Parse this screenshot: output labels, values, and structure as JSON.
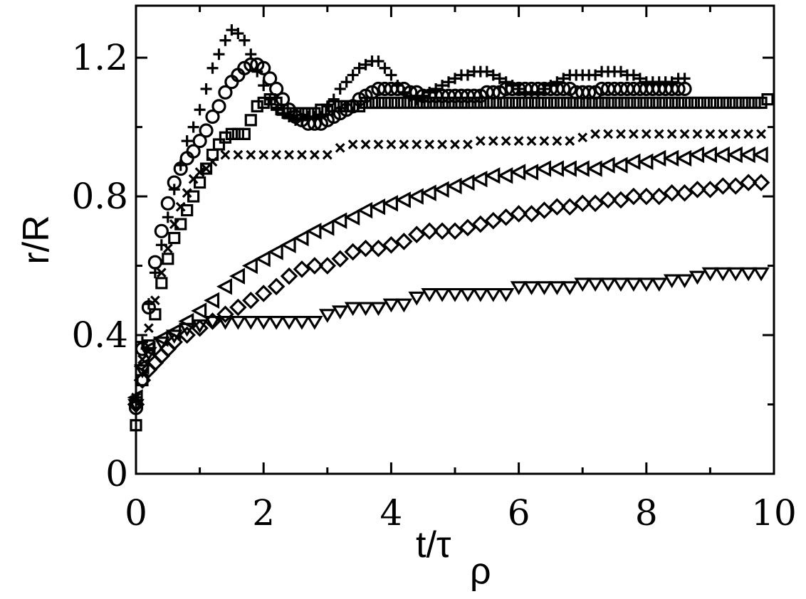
{
  "chart_data": {
    "type": "scatter",
    "xlabel_main": "t/τ",
    "xlabel_sub": "ρ",
    "ylabel": "r/R",
    "xlim": [
      0,
      10
    ],
    "ylim": [
      0,
      1.35
    ],
    "x_ticks": [
      "0",
      "2",
      "4",
      "6",
      "8",
      "10"
    ],
    "x_tick_values": [
      0,
      2,
      4,
      6,
      8,
      10
    ],
    "y_ticks": [
      "0",
      "0.4",
      "0.8",
      "1.2"
    ],
    "y_tick_values": [
      0,
      0.4,
      0.8,
      1.2
    ],
    "grid": false,
    "legend": "none",
    "marker_color": "#000000",
    "series": [
      {
        "marker": "plus",
        "x": [
          0.0,
          0.1,
          0.2,
          0.3,
          0.4,
          0.5,
          0.6,
          0.7,
          0.8,
          0.9,
          1.0,
          1.1,
          1.2,
          1.3,
          1.4,
          1.5,
          1.6,
          1.7,
          1.8,
          1.9,
          2.0,
          2.1,
          2.2,
          2.3,
          2.4,
          2.5,
          2.6,
          2.7,
          2.8,
          2.9,
          3.0,
          3.1,
          3.2,
          3.3,
          3.4,
          3.5,
          3.6,
          3.7,
          3.8,
          3.9,
          4.0,
          4.1,
          4.2,
          4.3,
          4.4,
          4.5,
          4.6,
          4.7,
          4.8,
          4.9,
          5.0,
          5.1,
          5.2,
          5.3,
          5.4,
          5.5,
          5.6,
          5.7,
          5.8,
          5.9,
          6.0,
          6.1,
          6.2,
          6.3,
          6.4,
          6.5,
          6.6,
          6.7,
          6.8,
          6.9,
          7.0,
          7.1,
          7.2,
          7.3,
          7.4,
          7.5,
          7.6,
          7.7,
          7.8,
          7.9,
          8.0,
          8.1,
          8.2,
          8.3,
          8.4,
          8.5,
          8.6
        ],
        "y": [
          0.22,
          0.38,
          0.49,
          0.58,
          0.66,
          0.74,
          0.82,
          0.89,
          0.96,
          1.0,
          1.05,
          1.11,
          1.17,
          1.21,
          1.25,
          1.28,
          1.27,
          1.25,
          1.21,
          1.16,
          1.12,
          1.08,
          1.05,
          1.04,
          1.03,
          1.02,
          1.02,
          1.03,
          1.03,
          1.03,
          1.06,
          1.08,
          1.11,
          1.13,
          1.15,
          1.17,
          1.18,
          1.19,
          1.19,
          1.17,
          1.15,
          1.12,
          1.1,
          1.09,
          1.08,
          1.09,
          1.1,
          1.11,
          1.12,
          1.13,
          1.14,
          1.15,
          1.15,
          1.16,
          1.16,
          1.16,
          1.15,
          1.14,
          1.13,
          1.12,
          1.11,
          1.1,
          1.1,
          1.1,
          1.11,
          1.12,
          1.13,
          1.14,
          1.15,
          1.15,
          1.15,
          1.15,
          1.15,
          1.16,
          1.16,
          1.16,
          1.16,
          1.15,
          1.15,
          1.14,
          1.13,
          1.13,
          1.13,
          1.13,
          1.13,
          1.14,
          1.14
        ]
      },
      {
        "marker": "circle",
        "x": [
          0.0,
          0.1,
          0.2,
          0.3,
          0.4,
          0.5,
          0.6,
          0.7,
          0.8,
          0.9,
          1.0,
          1.1,
          1.2,
          1.3,
          1.4,
          1.5,
          1.6,
          1.7,
          1.8,
          1.9,
          2.0,
          2.1,
          2.2,
          2.3,
          2.4,
          2.5,
          2.6,
          2.7,
          2.8,
          2.9,
          3.0,
          3.1,
          3.2,
          3.3,
          3.4,
          3.5,
          3.6,
          3.7,
          3.8,
          3.9,
          4.0,
          4.1,
          4.2,
          4.3,
          4.4,
          4.5,
          4.6,
          4.7,
          4.8,
          4.9,
          5.0,
          5.1,
          5.2,
          5.3,
          5.4,
          5.5,
          5.6,
          5.7,
          5.8,
          5.9,
          6.0,
          6.1,
          6.2,
          6.3,
          6.4,
          6.5,
          6.6,
          6.7,
          6.8,
          6.9,
          7.0,
          7.1,
          7.2,
          7.3,
          7.4,
          7.5,
          7.6,
          7.7,
          7.8,
          7.9,
          8.0,
          8.1,
          8.2,
          8.3,
          8.4,
          8.5,
          8.6
        ],
        "y": [
          0.19,
          0.36,
          0.48,
          0.61,
          0.7,
          0.78,
          0.84,
          0.88,
          0.91,
          0.93,
          0.96,
          0.99,
          1.03,
          1.06,
          1.1,
          1.13,
          1.15,
          1.17,
          1.18,
          1.18,
          1.17,
          1.14,
          1.11,
          1.08,
          1.05,
          1.03,
          1.02,
          1.01,
          1.01,
          1.01,
          1.02,
          1.03,
          1.04,
          1.05,
          1.06,
          1.08,
          1.09,
          1.1,
          1.11,
          1.11,
          1.11,
          1.11,
          1.11,
          1.1,
          1.1,
          1.09,
          1.09,
          1.09,
          1.09,
          1.09,
          1.09,
          1.09,
          1.09,
          1.09,
          1.09,
          1.1,
          1.1,
          1.1,
          1.11,
          1.11,
          1.11,
          1.11,
          1.11,
          1.11,
          1.11,
          1.11,
          1.11,
          1.11,
          1.11,
          1.1,
          1.1,
          1.1,
          1.1,
          1.11,
          1.11,
          1.11,
          1.11,
          1.11,
          1.11,
          1.11,
          1.11,
          1.11,
          1.11,
          1.11,
          1.11,
          1.11,
          1.11
        ]
      },
      {
        "marker": "square",
        "x": [
          0.0,
          0.1,
          0.2,
          0.3,
          0.4,
          0.5,
          0.6,
          0.7,
          0.8,
          0.9,
          1.0,
          1.1,
          1.2,
          1.3,
          1.4,
          1.5,
          1.6,
          1.7,
          1.8,
          1.9,
          2.0,
          2.1,
          2.2,
          2.3,
          2.4,
          2.5,
          2.6,
          2.7,
          2.8,
          2.9,
          3.0,
          3.1,
          3.2,
          3.3,
          3.4,
          3.5,
          3.6,
          3.7,
          3.8,
          3.9,
          4.0,
          4.1,
          4.2,
          4.3,
          4.4,
          4.5,
          4.6,
          4.7,
          4.8,
          4.9,
          5.0,
          5.1,
          5.2,
          5.3,
          5.4,
          5.5,
          5.6,
          5.7,
          5.8,
          5.9,
          6.0,
          6.1,
          6.2,
          6.3,
          6.4,
          6.5,
          6.6,
          6.7,
          6.8,
          6.9,
          7.0,
          7.1,
          7.2,
          7.3,
          7.4,
          7.5,
          7.6,
          7.7,
          7.8,
          7.9,
          8.0,
          8.1,
          8.2,
          8.3,
          8.4,
          8.5,
          8.6,
          8.7,
          8.8,
          8.9,
          9.0,
          9.1,
          9.2,
          9.3,
          9.4,
          9.5,
          9.6,
          9.7,
          9.8,
          9.9
        ],
        "y": [
          0.14,
          0.27,
          0.37,
          0.46,
          0.55,
          0.62,
          0.68,
          0.72,
          0.76,
          0.8,
          0.84,
          0.88,
          0.92,
          0.95,
          0.97,
          0.98,
          0.98,
          0.98,
          1.02,
          1.06,
          1.07,
          1.08,
          1.07,
          1.05,
          1.04,
          1.04,
          1.04,
          1.04,
          1.04,
          1.05,
          1.05,
          1.06,
          1.06,
          1.06,
          1.06,
          1.06,
          1.07,
          1.07,
          1.07,
          1.07,
          1.07,
          1.07,
          1.07,
          1.07,
          1.07,
          1.07,
          1.07,
          1.07,
          1.07,
          1.07,
          1.07,
          1.07,
          1.07,
          1.07,
          1.07,
          1.07,
          1.07,
          1.07,
          1.07,
          1.07,
          1.07,
          1.07,
          1.07,
          1.07,
          1.07,
          1.07,
          1.07,
          1.07,
          1.07,
          1.07,
          1.07,
          1.07,
          1.07,
          1.07,
          1.07,
          1.07,
          1.07,
          1.07,
          1.07,
          1.07,
          1.07,
          1.07,
          1.07,
          1.07,
          1.07,
          1.07,
          1.07,
          1.07,
          1.07,
          1.07,
          1.07,
          1.07,
          1.07,
          1.07,
          1.07,
          1.07,
          1.07,
          1.07,
          1.07,
          1.08
        ]
      },
      {
        "marker": "cross",
        "x": [
          0.0,
          0.1,
          0.2,
          0.3,
          0.4,
          0.5,
          0.6,
          0.7,
          0.8,
          0.9,
          1.0,
          1.1,
          1.2,
          1.4,
          1.6,
          1.8,
          2.0,
          2.2,
          2.4,
          2.6,
          2.8,
          3.0,
          3.2,
          3.4,
          3.6,
          3.8,
          4.0,
          4.2,
          4.4,
          4.6,
          4.8,
          5.0,
          5.2,
          5.4,
          5.6,
          5.8,
          6.0,
          6.2,
          6.4,
          6.6,
          6.8,
          7.0,
          7.2,
          7.4,
          7.6,
          7.8,
          8.0,
          8.2,
          8.4,
          8.6,
          8.8,
          9.0,
          9.2,
          9.4,
          9.6,
          9.8
        ],
        "y": [
          0.22,
          0.33,
          0.42,
          0.5,
          0.58,
          0.65,
          0.72,
          0.77,
          0.81,
          0.85,
          0.87,
          0.88,
          0.9,
          0.92,
          0.92,
          0.92,
          0.92,
          0.92,
          0.92,
          0.92,
          0.92,
          0.92,
          0.94,
          0.95,
          0.95,
          0.95,
          0.95,
          0.95,
          0.95,
          0.95,
          0.95,
          0.95,
          0.95,
          0.96,
          0.96,
          0.96,
          0.96,
          0.96,
          0.96,
          0.96,
          0.96,
          0.97,
          0.98,
          0.98,
          0.98,
          0.98,
          0.98,
          0.98,
          0.98,
          0.98,
          0.98,
          0.98,
          0.98,
          0.98,
          0.98,
          0.98
        ]
      },
      {
        "marker": "triangle-left",
        "x": [
          0.0,
          0.1,
          0.2,
          0.4,
          0.6,
          0.8,
          1.0,
          1.2,
          1.4,
          1.6,
          1.8,
          2.0,
          2.2,
          2.4,
          2.6,
          2.8,
          3.0,
          3.2,
          3.4,
          3.6,
          3.8,
          4.0,
          4.2,
          4.4,
          4.6,
          4.8,
          5.0,
          5.2,
          5.4,
          5.6,
          5.8,
          6.0,
          6.2,
          6.4,
          6.6,
          6.8,
          7.0,
          7.2,
          7.4,
          7.6,
          7.8,
          8.0,
          8.2,
          8.4,
          8.6,
          8.8,
          9.0,
          9.2,
          9.4,
          9.6,
          9.8
        ],
        "y": [
          0.22,
          0.31,
          0.36,
          0.39,
          0.41,
          0.44,
          0.47,
          0.5,
          0.54,
          0.57,
          0.6,
          0.62,
          0.64,
          0.66,
          0.68,
          0.7,
          0.71,
          0.73,
          0.74,
          0.76,
          0.77,
          0.78,
          0.79,
          0.8,
          0.81,
          0.82,
          0.83,
          0.84,
          0.85,
          0.86,
          0.86,
          0.87,
          0.87,
          0.88,
          0.88,
          0.88,
          0.88,
          0.88,
          0.89,
          0.89,
          0.9,
          0.9,
          0.91,
          0.91,
          0.91,
          0.92,
          0.92,
          0.92,
          0.92,
          0.92,
          0.92
        ]
      },
      {
        "marker": "diamond",
        "x": [
          0.0,
          0.1,
          0.2,
          0.3,
          0.4,
          0.5,
          0.6,
          0.8,
          1.0,
          1.2,
          1.4,
          1.6,
          1.8,
          2.0,
          2.2,
          2.4,
          2.6,
          2.8,
          3.0,
          3.2,
          3.4,
          3.6,
          3.8,
          4.0,
          4.2,
          4.4,
          4.6,
          4.8,
          5.0,
          5.2,
          5.4,
          5.6,
          5.8,
          6.0,
          6.2,
          6.4,
          6.6,
          6.8,
          7.0,
          7.2,
          7.4,
          7.6,
          7.8,
          8.0,
          8.2,
          8.4,
          8.6,
          8.8,
          9.0,
          9.2,
          9.4,
          9.6,
          9.8
        ],
        "y": [
          0.2,
          0.27,
          0.3,
          0.32,
          0.34,
          0.36,
          0.38,
          0.4,
          0.42,
          0.44,
          0.46,
          0.48,
          0.5,
          0.52,
          0.54,
          0.57,
          0.59,
          0.6,
          0.6,
          0.62,
          0.64,
          0.65,
          0.65,
          0.66,
          0.67,
          0.69,
          0.7,
          0.7,
          0.7,
          0.71,
          0.72,
          0.73,
          0.74,
          0.75,
          0.75,
          0.76,
          0.77,
          0.77,
          0.78,
          0.78,
          0.79,
          0.79,
          0.8,
          0.8,
          0.8,
          0.81,
          0.81,
          0.82,
          0.82,
          0.83,
          0.83,
          0.84,
          0.84
        ]
      },
      {
        "marker": "triangle-down",
        "x": [
          0.0,
          0.1,
          0.2,
          0.4,
          0.6,
          0.8,
          1.0,
          1.2,
          1.4,
          1.6,
          1.8,
          2.0,
          2.2,
          2.4,
          2.6,
          2.8,
          3.0,
          3.2,
          3.4,
          3.6,
          3.8,
          4.0,
          4.2,
          4.4,
          4.6,
          4.8,
          5.0,
          5.2,
          5.4,
          5.6,
          5.8,
          6.0,
          6.2,
          6.4,
          6.6,
          6.8,
          7.0,
          7.2,
          7.4,
          7.6,
          7.8,
          8.0,
          8.2,
          8.4,
          8.6,
          8.8,
          9.0,
          9.2,
          9.4,
          9.6,
          9.8
        ],
        "y": [
          0.2,
          0.3,
          0.35,
          0.38,
          0.4,
          0.42,
          0.43,
          0.44,
          0.44,
          0.44,
          0.44,
          0.44,
          0.44,
          0.44,
          0.44,
          0.44,
          0.46,
          0.47,
          0.48,
          0.48,
          0.48,
          0.49,
          0.49,
          0.51,
          0.52,
          0.52,
          0.52,
          0.52,
          0.52,
          0.52,
          0.52,
          0.54,
          0.54,
          0.54,
          0.54,
          0.54,
          0.55,
          0.55,
          0.55,
          0.55,
          0.55,
          0.55,
          0.55,
          0.56,
          0.56,
          0.57,
          0.58,
          0.58,
          0.58,
          0.58,
          0.58
        ]
      }
    ]
  }
}
